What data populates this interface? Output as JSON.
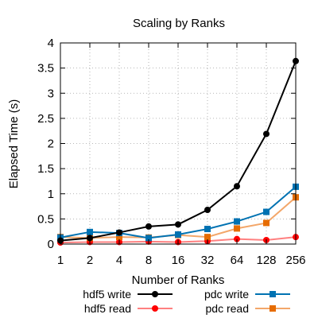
{
  "chart_data": {
    "type": "line",
    "title": "Scaling by Ranks",
    "xlabel": "Number of Ranks",
    "ylabel": "Elapsed Time (s)",
    "x_scale": "log2",
    "categories": [
      "1",
      "2",
      "4",
      "8",
      "16",
      "32",
      "64",
      "128",
      "256"
    ],
    "ylim": [
      0,
      4
    ],
    "yticks": [
      "0",
      "0.5",
      "1",
      "1.5",
      "2",
      "2.5",
      "3",
      "3.5",
      "4"
    ],
    "grid": true,
    "legend_position": "bottom",
    "series": [
      {
        "name": "hdf5 write",
        "color": "#000000",
        "marker": "circle",
        "values": [
          0.07,
          0.12,
          0.23,
          0.35,
          0.39,
          0.68,
          1.15,
          2.19,
          3.64
        ]
      },
      {
        "name": "hdf5 read",
        "color": "#ff0000",
        "marker": "circle",
        "values": [
          0.03,
          0.04,
          0.04,
          0.05,
          0.04,
          0.06,
          0.1,
          0.08,
          0.14
        ]
      },
      {
        "name": "pdc write",
        "color": "#0072b2",
        "marker": "square",
        "values": [
          0.13,
          0.24,
          0.22,
          0.12,
          0.19,
          0.3,
          0.45,
          0.64,
          1.14
        ]
      },
      {
        "name": "pdc read",
        "color": "#e66c00",
        "marker": "square",
        "values": [
          0.14,
          0.12,
          0.14,
          0.13,
          0.18,
          0.14,
          0.31,
          0.42,
          0.93
        ]
      }
    ]
  }
}
